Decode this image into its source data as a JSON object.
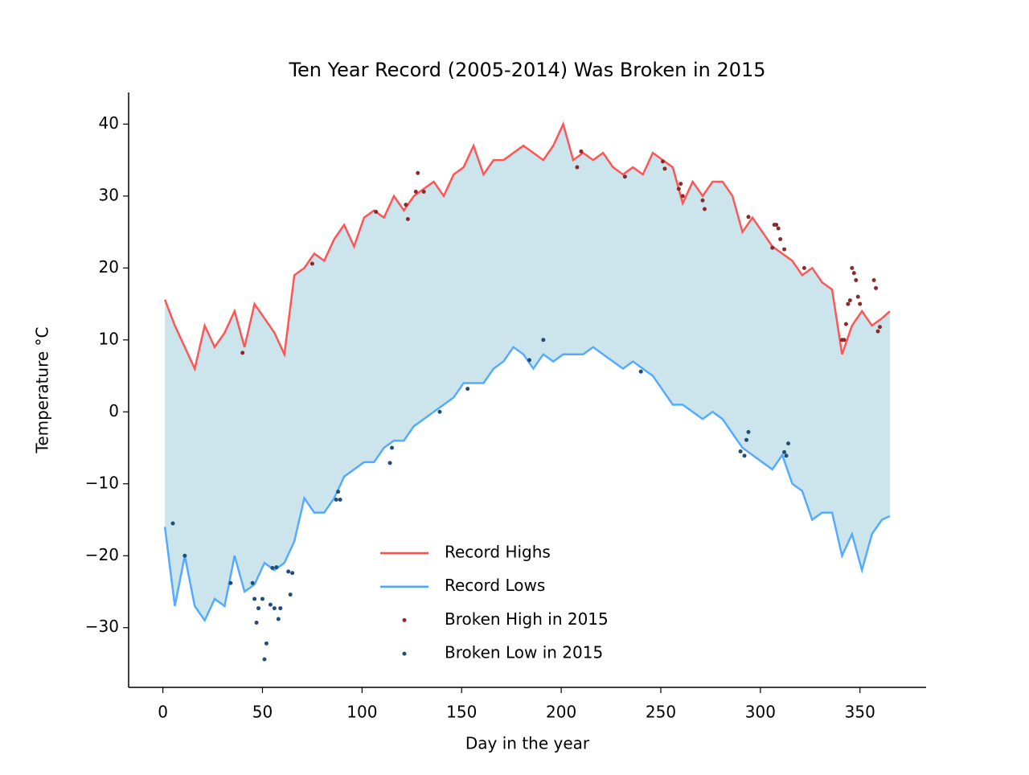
{
  "chart_data": {
    "type": "line",
    "title": "Ten Year Record (2005-2014) Was Broken in 2015",
    "x_label": "Day in the year",
    "y_label": "Temperature °C",
    "xlim": [
      -17.2,
      383.2
    ],
    "ylim": [
      -38.3,
      44.4
    ],
    "xticks": [
      0,
      50,
      100,
      150,
      200,
      250,
      300,
      350
    ],
    "yticks": [
      {
        "value": -30,
        "label": "−30"
      },
      {
        "value": -20,
        "label": "−20"
      },
      {
        "value": -10,
        "label": "−10"
      },
      0,
      10,
      20,
      30,
      40
    ],
    "legend_position": "lower center",
    "fill_color": "#cce5ec",
    "x": [
      1,
      6,
      11,
      16,
      21,
      26,
      31,
      36,
      41,
      46,
      51,
      56,
      61,
      66,
      71,
      76,
      81,
      86,
      91,
      96,
      101,
      106,
      111,
      116,
      121,
      126,
      131,
      136,
      141,
      146,
      151,
      156,
      161,
      166,
      171,
      176,
      181,
      186,
      191,
      196,
      201,
      206,
      211,
      216,
      221,
      226,
      231,
      236,
      241,
      246,
      251,
      256,
      261,
      266,
      271,
      276,
      281,
      286,
      291,
      296,
      301,
      306,
      311,
      316,
      321,
      326,
      331,
      336,
      341,
      346,
      351,
      356,
      361,
      365
    ],
    "series": [
      {
        "name": "Record Highs",
        "color": "#ff4d4d",
        "values": [
          15.6,
          12,
          9,
          6,
          12,
          9,
          11,
          14,
          9,
          15,
          13,
          11,
          8,
          19,
          20,
          22,
          21,
          24,
          26,
          23,
          27,
          28,
          27,
          30,
          28,
          30,
          31,
          32,
          30,
          33,
          34,
          37,
          33,
          35,
          35,
          36,
          37,
          36,
          35,
          37,
          40,
          35,
          36,
          35,
          36,
          34,
          33,
          34,
          33,
          36,
          35,
          34,
          29,
          32,
          30,
          32,
          32,
          30,
          25,
          27,
          25,
          23,
          22,
          21,
          19,
          20,
          18,
          17,
          8,
          12,
          14,
          12,
          13,
          14
        ]
      },
      {
        "name": "Record Lows",
        "color": "#4da6ff",
        "values": [
          -16,
          -27,
          -20,
          -27,
          -29,
          -26,
          -27,
          -20,
          -25,
          -24,
          -21,
          -22,
          -21,
          -18,
          -12,
          -14,
          -14,
          -12,
          -9,
          -8,
          -7,
          -7,
          -5,
          -4,
          -4,
          -2,
          -1,
          0,
          1,
          2,
          4,
          4,
          4,
          6,
          7,
          9,
          8,
          6,
          8,
          7,
          8,
          8,
          8,
          9,
          8,
          7,
          6,
          7,
          6,
          5,
          3,
          1,
          1,
          0,
          -1,
          0,
          -1,
          -3,
          -5,
          -6,
          -7,
          -8,
          -6,
          -10,
          -11,
          -15,
          -14,
          -14,
          -20,
          -17,
          -22,
          -17,
          -15,
          -14.5
        ]
      }
    ],
    "scatter": [
      {
        "name": "Broken High in 2015",
        "color": "#8b2a2a",
        "x": [
          40,
          75,
          107,
          122,
          123,
          127,
          128,
          131,
          208,
          210,
          232,
          251,
          252,
          259,
          260,
          261,
          271,
          272,
          294,
          306,
          307,
          308,
          309,
          310,
          312,
          322,
          341,
          342,
          343,
          344,
          345,
          346,
          347,
          348,
          349,
          350,
          357,
          358,
          359,
          360
        ],
        "values": [
          8.2,
          20.6,
          27.8,
          28.8,
          26.8,
          30.6,
          33.2,
          30.6,
          34,
          36.2,
          32.7,
          34.8,
          33.8,
          31,
          31.7,
          30,
          29.4,
          28.2,
          27.1,
          22.8,
          26,
          26,
          25.5,
          24,
          22.6,
          20,
          10,
          10,
          12.2,
          15,
          15.5,
          20,
          19.3,
          18.3,
          16,
          15,
          18.3,
          17.2,
          11.2,
          11.8
        ]
      },
      {
        "name": "Broken Low in 2015",
        "color": "#1f4e79",
        "x": [
          5,
          11,
          34,
          45,
          46,
          47,
          48,
          50,
          51,
          52,
          54,
          55,
          56,
          57,
          58,
          59,
          63,
          64,
          65,
          87,
          88,
          89,
          114,
          115,
          139,
          153,
          184,
          191,
          240,
          290,
          292,
          293,
          294,
          312,
          313,
          314
        ],
        "values": [
          -15.5,
          -20,
          -23.8,
          -23.8,
          -26,
          -29.3,
          -27.3,
          -26,
          -34.4,
          -32.2,
          -26.8,
          -21.7,
          -27.3,
          -21.6,
          -28.8,
          -27.3,
          -22.2,
          -25.4,
          -22.4,
          -12.2,
          -11.1,
          -12.2,
          -7.1,
          -5,
          0,
          3.2,
          7.2,
          10,
          5.6,
          -5.5,
          -6.1,
          -3.9,
          -2.8,
          -5.6,
          -6.1,
          -4.4
        ]
      }
    ]
  }
}
